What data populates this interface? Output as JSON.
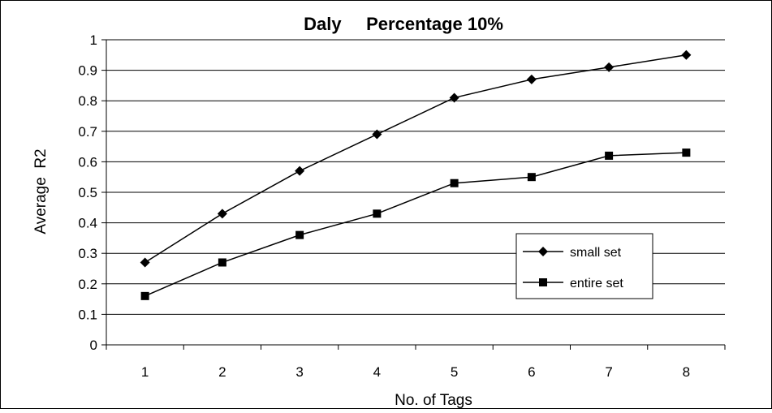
{
  "chart_data": {
    "type": "line",
    "title": "Daly     Percentage 10%",
    "xlabel": "No. of Tags",
    "ylabel": "Average  R2",
    "x": [
      1,
      2,
      3,
      4,
      5,
      6,
      7,
      8
    ],
    "ylim": [
      0,
      1
    ],
    "yticks": [
      "0",
      "0.1",
      "0.2",
      "0.3",
      "0.4",
      "0.5",
      "0.6",
      "0.7",
      "0.8",
      "0.9",
      "1"
    ],
    "xticks": [
      "1",
      "2",
      "3",
      "4",
      "5",
      "6",
      "7",
      "8"
    ],
    "grid": "horizontal",
    "legend_position": "right",
    "series": [
      {
        "name": "small set",
        "marker": "diamond",
        "color": "#000000",
        "values": [
          0.27,
          0.43,
          0.57,
          0.69,
          0.81,
          0.87,
          0.91,
          0.95
        ]
      },
      {
        "name": "entire set",
        "marker": "square",
        "color": "#000000",
        "values": [
          0.16,
          0.27,
          0.36,
          0.43,
          0.53,
          0.55,
          0.62,
          0.63
        ]
      }
    ]
  }
}
